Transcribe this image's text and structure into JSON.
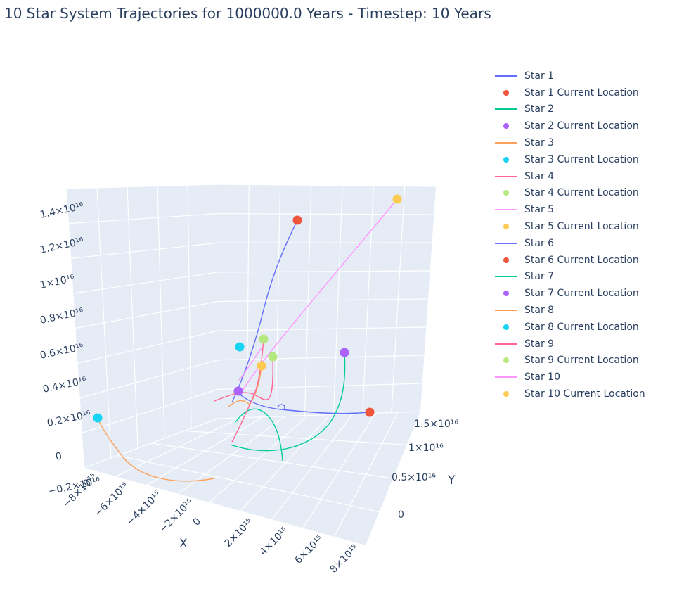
{
  "title": "10 Star System Trajectories for 1000000.0 Years - Timestep: 10 Years",
  "chart_data": {
    "type": "scatter3d",
    "axes": {
      "x": {
        "title": "X",
        "ticks": [
          "−8×10¹⁵",
          "−6×10¹⁵",
          "−4×10¹⁵",
          "−2×10¹⁵",
          "0",
          "2×10¹⁵",
          "4×10¹⁵",
          "6×10¹⁵",
          "8×10¹⁵"
        ]
      },
      "y": {
        "title": "Y",
        "ticks": [
          "0",
          "0.5×10¹⁶",
          "1×10¹⁶",
          "1.5×10¹⁶"
        ]
      },
      "z": {
        "title": "",
        "ticks": [
          "−0.2×10¹⁶",
          "0",
          "0.2×10¹⁶",
          "0.4×10¹⁶",
          "0.6×10¹⁶",
          "0.8×10¹⁶",
          "1×10¹⁶",
          "1.2×10¹⁶",
          "1.4×10¹⁶"
        ]
      }
    },
    "grid": true,
    "legend_position": "right",
    "series": [
      {
        "name": "Star 1",
        "color": "#636efa",
        "current": "Star 1 Current Location",
        "current_color": "#ef553b"
      },
      {
        "name": "Star 2",
        "color": "#00cc96",
        "current": "Star 2 Current Location",
        "current_color": "#ab63fa"
      },
      {
        "name": "Star 3",
        "color": "#ffa15a",
        "current": "Star 3 Current Location",
        "current_color": "#19d3f3"
      },
      {
        "name": "Star 4",
        "color": "#ff6692",
        "current": "Star 4 Current Location",
        "current_color": "#b6e880"
      },
      {
        "name": "Star 5",
        "color": "#ff97ff",
        "current": "Star 5 Current Location",
        "current_color": "#fecb52"
      },
      {
        "name": "Star 6",
        "color": "#636efa",
        "current": "Star 6 Current Location",
        "current_color": "#ef553b"
      },
      {
        "name": "Star 7",
        "color": "#00cc96",
        "current": "Star 7 Current Location",
        "current_color": "#ab63fa"
      },
      {
        "name": "Star 8",
        "color": "#ffa15a",
        "current": "Star 8 Current Location",
        "current_color": "#19d3f3"
      },
      {
        "name": "Star 9",
        "color": "#ff6692",
        "current": "Star 9 Current Location",
        "current_color": "#b6e880"
      },
      {
        "name": "Star 10",
        "color": "#ff97ff",
        "current": "Star 10 Current Location",
        "current_color": "#fecb52"
      }
    ]
  }
}
